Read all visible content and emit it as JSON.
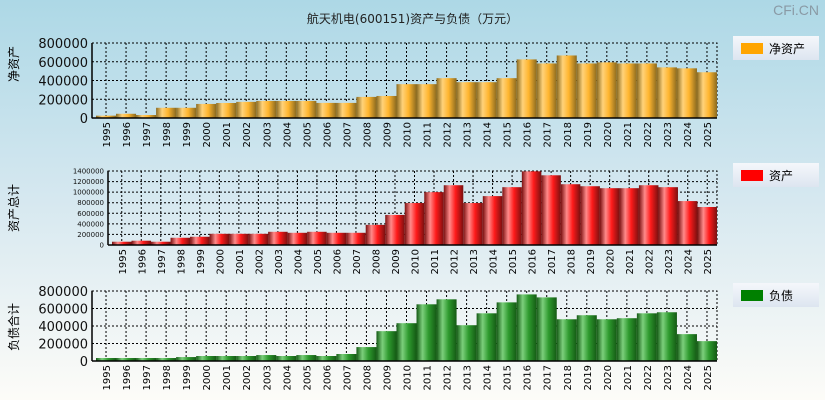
{
  "title": "航天机电(600151)资产与负债（万元）",
  "watermark": "CFi.CN",
  "chart_data": [
    {
      "type": "bar",
      "ylabel": "净资产",
      "legend": "净资产",
      "color": "#ffa500",
      "ylim": [
        0,
        800000
      ],
      "yticks": [
        "0",
        "200000",
        "400000",
        "600000",
        "800000"
      ],
      "categories": [
        "1995",
        "1996",
        "1997",
        "1998",
        "1999",
        "2000",
        "2001",
        "2002",
        "2003",
        "2004",
        "2005",
        "2006",
        "2007",
        "2008",
        "2009",
        "2010",
        "2011",
        "2012",
        "2013",
        "2014",
        "2015",
        "2016",
        "2017",
        "2018",
        "2019",
        "2020",
        "2021",
        "2022",
        "2023",
        "2024",
        "2025"
      ],
      "values": [
        25000,
        45000,
        32000,
        109000,
        109000,
        150000,
        160000,
        172000,
        182000,
        182000,
        182000,
        161000,
        161000,
        225000,
        235000,
        361000,
        361000,
        425000,
        382000,
        382000,
        425000,
        625000,
        582000,
        667000,
        582000,
        593000,
        582000,
        582000,
        540000,
        530000,
        488000
      ]
    },
    {
      "type": "bar",
      "ylabel": "资产总计",
      "legend": "资产",
      "color": "#ff0000",
      "ylim": [
        0,
        1400000
      ],
      "yticks": [
        "0",
        "200000",
        "400000",
        "600000",
        "800000",
        "1000000",
        "1200000",
        "1400000"
      ],
      "categories": [
        "1995",
        "1996",
        "1997",
        "1998",
        "1999",
        "2000",
        "2001",
        "2002",
        "2003",
        "2004",
        "2005",
        "2006",
        "2007",
        "2008",
        "2009",
        "2010",
        "2011",
        "2012",
        "2013",
        "2014",
        "2015",
        "2016",
        "2017",
        "2018",
        "2019",
        "2020",
        "2021",
        "2022",
        "2023",
        "2024",
        "2025"
      ],
      "values": [
        62000,
        81000,
        62000,
        137000,
        156000,
        212000,
        212000,
        212000,
        250000,
        231000,
        250000,
        231000,
        231000,
        381000,
        569000,
        794000,
        1000000,
        1131000,
        794000,
        925000,
        1094000,
        1394000,
        1319000,
        1150000,
        1112000,
        1075000,
        1075000,
        1131000,
        1094000,
        831000,
        719000
      ]
    },
    {
      "type": "bar",
      "ylabel": "负债合计",
      "legend": "负债",
      "color": "#008000",
      "ylim": [
        0,
        800000
      ],
      "yticks": [
        "0",
        "200000",
        "400000",
        "600000",
        "800000"
      ],
      "categories": [
        "1995",
        "1996",
        "1997",
        "1998",
        "1999",
        "2000",
        "2001",
        "2002",
        "2003",
        "2004",
        "2005",
        "2006",
        "2007",
        "2008",
        "2009",
        "2010",
        "2011",
        "2012",
        "2013",
        "2014",
        "2015",
        "2016",
        "2017",
        "2018",
        "2019",
        "2020",
        "2021",
        "2022",
        "2023",
        "2024",
        "2025"
      ],
      "values": [
        34000,
        34000,
        34000,
        34000,
        45000,
        57000,
        57000,
        57000,
        68000,
        57000,
        68000,
        57000,
        80000,
        159000,
        341000,
        432000,
        648000,
        705000,
        409000,
        545000,
        670000,
        761000,
        727000,
        477000,
        523000,
        477000,
        489000,
        545000,
        557000,
        307000,
        227000
      ]
    }
  ]
}
